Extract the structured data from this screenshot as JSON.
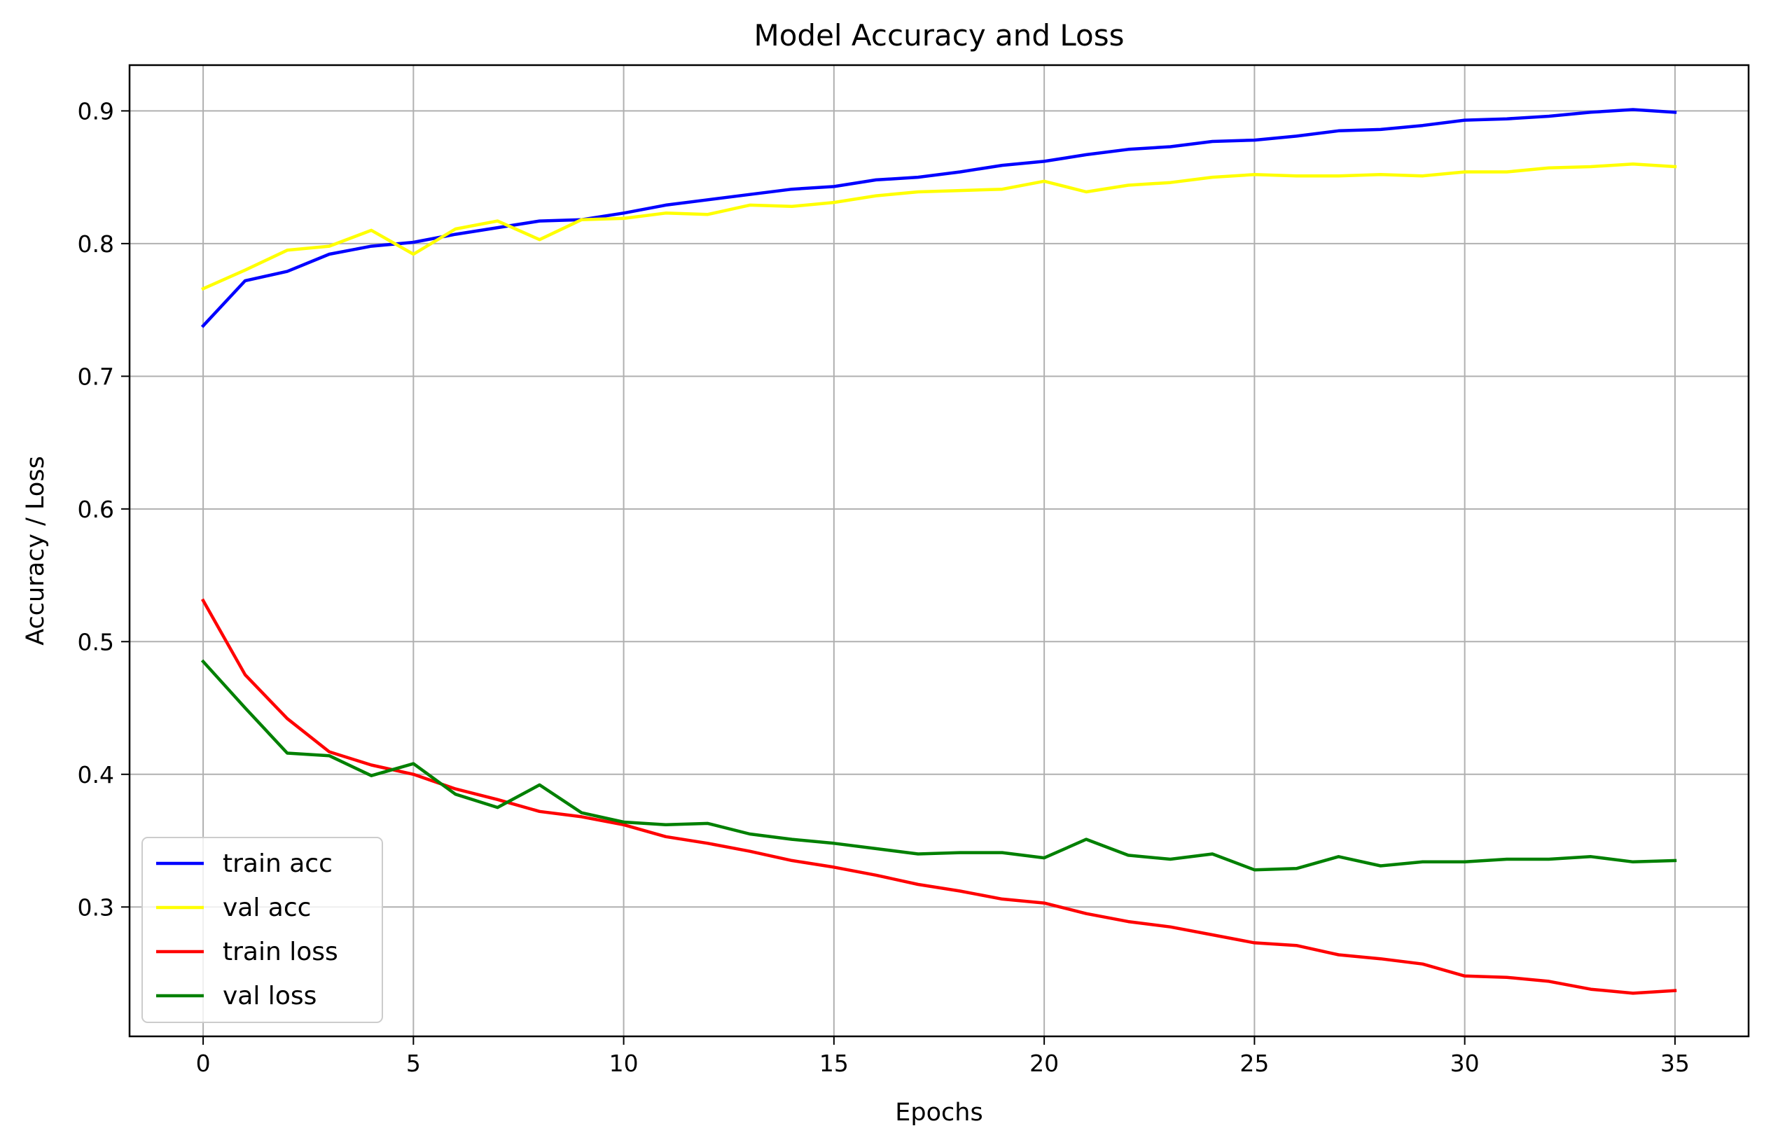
{
  "chart_data": {
    "type": "line",
    "title": "Model Accuracy and Loss",
    "xlabel": "Epochs",
    "ylabel": "Accuracy / Loss",
    "xlim": [
      -1.75,
      36.75
    ],
    "ylim": [
      0.2025,
      0.9345
    ],
    "xticks": [
      0,
      5,
      10,
      15,
      20,
      25,
      30,
      35
    ],
    "yticks": [
      0.3,
      0.4,
      0.5,
      0.6,
      0.7,
      0.8,
      0.9
    ],
    "grid": true,
    "legend_position": "lower-left",
    "x": [
      0,
      1,
      2,
      3,
      4,
      5,
      6,
      7,
      8,
      9,
      10,
      11,
      12,
      13,
      14,
      15,
      16,
      17,
      18,
      19,
      20,
      21,
      22,
      23,
      24,
      25,
      26,
      27,
      28,
      29,
      30,
      31,
      32,
      33,
      34,
      35
    ],
    "series": [
      {
        "name": "train acc",
        "color": "#0000ff",
        "values": [
          0.738,
          0.772,
          0.779,
          0.792,
          0.798,
          0.801,
          0.807,
          0.812,
          0.817,
          0.818,
          0.823,
          0.829,
          0.833,
          0.837,
          0.841,
          0.843,
          0.848,
          0.85,
          0.854,
          0.859,
          0.862,
          0.867,
          0.871,
          0.873,
          0.877,
          0.878,
          0.881,
          0.885,
          0.886,
          0.889,
          0.893,
          0.894,
          0.896,
          0.899,
          0.901,
          0.899
        ]
      },
      {
        "name": "val acc",
        "color": "#ffff00",
        "values": [
          0.766,
          0.78,
          0.795,
          0.798,
          0.81,
          0.792,
          0.811,
          0.817,
          0.803,
          0.818,
          0.819,
          0.823,
          0.822,
          0.829,
          0.828,
          0.831,
          0.836,
          0.839,
          0.84,
          0.841,
          0.847,
          0.839,
          0.844,
          0.846,
          0.85,
          0.852,
          0.851,
          0.851,
          0.852,
          0.851,
          0.854,
          0.854,
          0.857,
          0.858,
          0.86,
          0.858
        ]
      },
      {
        "name": "train loss",
        "color": "#ff0000",
        "values": [
          0.531,
          0.475,
          0.442,
          0.417,
          0.407,
          0.4,
          0.389,
          0.381,
          0.372,
          0.368,
          0.362,
          0.353,
          0.348,
          0.342,
          0.335,
          0.33,
          0.324,
          0.317,
          0.312,
          0.306,
          0.303,
          0.295,
          0.289,
          0.285,
          0.279,
          0.273,
          0.271,
          0.264,
          0.261,
          0.257,
          0.248,
          0.247,
          0.244,
          0.238,
          0.235,
          0.237
        ]
      },
      {
        "name": "val loss",
        "color": "#008000",
        "values": [
          0.485,
          0.45,
          0.416,
          0.414,
          0.399,
          0.408,
          0.385,
          0.375,
          0.392,
          0.371,
          0.364,
          0.362,
          0.363,
          0.355,
          0.351,
          0.348,
          0.344,
          0.34,
          0.341,
          0.341,
          0.337,
          0.351,
          0.339,
          0.336,
          0.34,
          0.328,
          0.329,
          0.338,
          0.331,
          0.334,
          0.334,
          0.336,
          0.336,
          0.338,
          0.334,
          0.335
        ]
      }
    ]
  }
}
